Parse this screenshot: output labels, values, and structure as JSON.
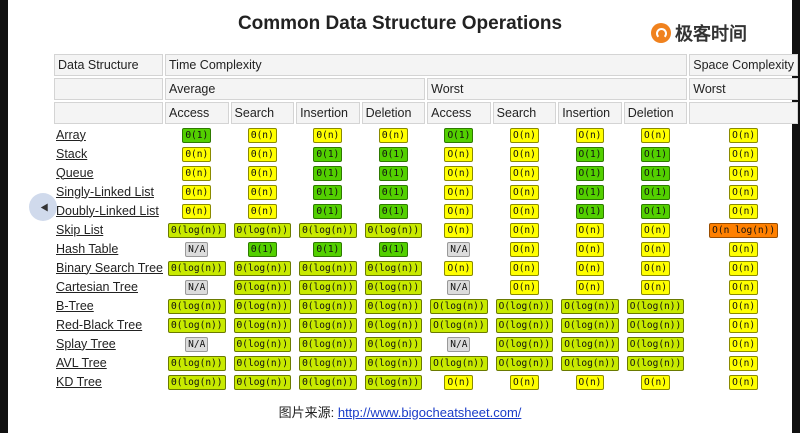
{
  "title": "Common Data Structure Operations",
  "logo_text": "极客时间",
  "headers": {
    "data_structure": "Data Structure",
    "time_complexity": "Time Complexity",
    "space_complexity": "Space Complexity",
    "average": "Average",
    "worst": "Worst",
    "space_worst": "Worst",
    "ops": [
      "Access",
      "Search",
      "Insertion",
      "Deletion",
      "Access",
      "Search",
      "Insertion",
      "Deletion"
    ]
  },
  "rows": [
    {
      "name": "Array",
      "cells": [
        [
          "Θ(1)",
          "green"
        ],
        [
          "Θ(n)",
          "yellow"
        ],
        [
          "Θ(n)",
          "yellow"
        ],
        [
          "Θ(n)",
          "yellow"
        ],
        [
          "O(1)",
          "green"
        ],
        [
          "O(n)",
          "yellow"
        ],
        [
          "O(n)",
          "yellow"
        ],
        [
          "O(n)",
          "yellow"
        ],
        [
          "O(n)",
          "yellow"
        ]
      ]
    },
    {
      "name": "Stack",
      "cells": [
        [
          "Θ(n)",
          "yellow"
        ],
        [
          "Θ(n)",
          "yellow"
        ],
        [
          "Θ(1)",
          "green"
        ],
        [
          "Θ(1)",
          "green"
        ],
        [
          "O(n)",
          "yellow"
        ],
        [
          "O(n)",
          "yellow"
        ],
        [
          "O(1)",
          "green"
        ],
        [
          "O(1)",
          "green"
        ],
        [
          "O(n)",
          "yellow"
        ]
      ]
    },
    {
      "name": "Queue",
      "cells": [
        [
          "Θ(n)",
          "yellow"
        ],
        [
          "Θ(n)",
          "yellow"
        ],
        [
          "Θ(1)",
          "green"
        ],
        [
          "Θ(1)",
          "green"
        ],
        [
          "O(n)",
          "yellow"
        ],
        [
          "O(n)",
          "yellow"
        ],
        [
          "O(1)",
          "green"
        ],
        [
          "O(1)",
          "green"
        ],
        [
          "O(n)",
          "yellow"
        ]
      ]
    },
    {
      "name": "Singly-Linked List",
      "cells": [
        [
          "Θ(n)",
          "yellow"
        ],
        [
          "Θ(n)",
          "yellow"
        ],
        [
          "Θ(1)",
          "green"
        ],
        [
          "Θ(1)",
          "green"
        ],
        [
          "O(n)",
          "yellow"
        ],
        [
          "O(n)",
          "yellow"
        ],
        [
          "O(1)",
          "green"
        ],
        [
          "O(1)",
          "green"
        ],
        [
          "O(n)",
          "yellow"
        ]
      ]
    },
    {
      "name": "Doubly-Linked List",
      "cells": [
        [
          "Θ(n)",
          "yellow"
        ],
        [
          "Θ(n)",
          "yellow"
        ],
        [
          "Θ(1)",
          "green"
        ],
        [
          "Θ(1)",
          "green"
        ],
        [
          "O(n)",
          "yellow"
        ],
        [
          "O(n)",
          "yellow"
        ],
        [
          "O(1)",
          "green"
        ],
        [
          "O(1)",
          "green"
        ],
        [
          "O(n)",
          "yellow"
        ]
      ]
    },
    {
      "name": "Skip List",
      "cells": [
        [
          "Θ(log(n))",
          "lime"
        ],
        [
          "Θ(log(n))",
          "lime"
        ],
        [
          "Θ(log(n))",
          "lime"
        ],
        [
          "Θ(log(n))",
          "lime"
        ],
        [
          "O(n)",
          "yellow"
        ],
        [
          "O(n)",
          "yellow"
        ],
        [
          "O(n)",
          "yellow"
        ],
        [
          "O(n)",
          "yellow"
        ],
        [
          "O(n log(n))",
          "orange"
        ]
      ]
    },
    {
      "name": "Hash Table",
      "cells": [
        [
          "N/A",
          "na"
        ],
        [
          "Θ(1)",
          "green"
        ],
        [
          "Θ(1)",
          "green"
        ],
        [
          "Θ(1)",
          "green"
        ],
        [
          "N/A",
          "na"
        ],
        [
          "O(n)",
          "yellow"
        ],
        [
          "O(n)",
          "yellow"
        ],
        [
          "O(n)",
          "yellow"
        ],
        [
          "O(n)",
          "yellow"
        ]
      ]
    },
    {
      "name": "Binary Search Tree",
      "cells": [
        [
          "Θ(log(n))",
          "lime"
        ],
        [
          "Θ(log(n))",
          "lime"
        ],
        [
          "Θ(log(n))",
          "lime"
        ],
        [
          "Θ(log(n))",
          "lime"
        ],
        [
          "O(n)",
          "yellow"
        ],
        [
          "O(n)",
          "yellow"
        ],
        [
          "O(n)",
          "yellow"
        ],
        [
          "O(n)",
          "yellow"
        ],
        [
          "O(n)",
          "yellow"
        ]
      ]
    },
    {
      "name": "Cartesian Tree",
      "cells": [
        [
          "N/A",
          "na"
        ],
        [
          "Θ(log(n))",
          "lime"
        ],
        [
          "Θ(log(n))",
          "lime"
        ],
        [
          "Θ(log(n))",
          "lime"
        ],
        [
          "N/A",
          "na"
        ],
        [
          "O(n)",
          "yellow"
        ],
        [
          "O(n)",
          "yellow"
        ],
        [
          "O(n)",
          "yellow"
        ],
        [
          "O(n)",
          "yellow"
        ]
      ]
    },
    {
      "name": "B-Tree",
      "cells": [
        [
          "Θ(log(n))",
          "lime"
        ],
        [
          "Θ(log(n))",
          "lime"
        ],
        [
          "Θ(log(n))",
          "lime"
        ],
        [
          "Θ(log(n))",
          "lime"
        ],
        [
          "O(log(n))",
          "lime"
        ],
        [
          "O(log(n))",
          "lime"
        ],
        [
          "O(log(n))",
          "lime"
        ],
        [
          "O(log(n))",
          "lime"
        ],
        [
          "O(n)",
          "yellow"
        ]
      ]
    },
    {
      "name": "Red-Black Tree",
      "cells": [
        [
          "Θ(log(n))",
          "lime"
        ],
        [
          "Θ(log(n))",
          "lime"
        ],
        [
          "Θ(log(n))",
          "lime"
        ],
        [
          "Θ(log(n))",
          "lime"
        ],
        [
          "O(log(n))",
          "lime"
        ],
        [
          "O(log(n))",
          "lime"
        ],
        [
          "O(log(n))",
          "lime"
        ],
        [
          "O(log(n))",
          "lime"
        ],
        [
          "O(n)",
          "yellow"
        ]
      ]
    },
    {
      "name": "Splay Tree",
      "cells": [
        [
          "N/A",
          "na"
        ],
        [
          "Θ(log(n))",
          "lime"
        ],
        [
          "Θ(log(n))",
          "lime"
        ],
        [
          "Θ(log(n))",
          "lime"
        ],
        [
          "N/A",
          "na"
        ],
        [
          "O(log(n))",
          "lime"
        ],
        [
          "O(log(n))",
          "lime"
        ],
        [
          "O(log(n))",
          "lime"
        ],
        [
          "O(n)",
          "yellow"
        ]
      ]
    },
    {
      "name": "AVL Tree",
      "cells": [
        [
          "Θ(log(n))",
          "lime"
        ],
        [
          "Θ(log(n))",
          "lime"
        ],
        [
          "Θ(log(n))",
          "lime"
        ],
        [
          "Θ(log(n))",
          "lime"
        ],
        [
          "O(log(n))",
          "lime"
        ],
        [
          "O(log(n))",
          "lime"
        ],
        [
          "O(log(n))",
          "lime"
        ],
        [
          "O(log(n))",
          "lime"
        ],
        [
          "O(n)",
          "yellow"
        ]
      ]
    },
    {
      "name": "KD Tree",
      "cells": [
        [
          "Θ(log(n))",
          "lime"
        ],
        [
          "Θ(log(n))",
          "lime"
        ],
        [
          "Θ(log(n))",
          "lime"
        ],
        [
          "Θ(log(n))",
          "lime"
        ],
        [
          "O(n)",
          "yellow"
        ],
        [
          "O(n)",
          "yellow"
        ],
        [
          "O(n)",
          "yellow"
        ],
        [
          "O(n)",
          "yellow"
        ],
        [
          "O(n)",
          "yellow"
        ]
      ]
    }
  ],
  "source": {
    "label": "图片来源: ",
    "url_text": "http://www.bigocheatsheet.com/"
  }
}
